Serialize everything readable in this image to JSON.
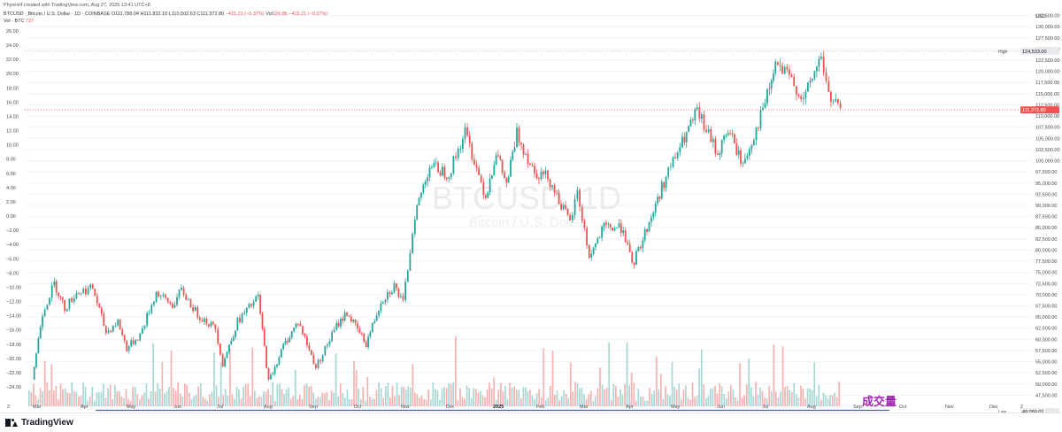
{
  "header": {
    "created_by": "Phyrexl4 created with TradingView.com, Aug 27, 2025 13:41 UTC+8",
    "symbol": "BTCUSD · Bitcoin / U.S. Dollar · 1D · COINBASE",
    "open": "O111,788.04",
    "high": "H111,832.10",
    "low": "L110,502.63",
    "close": "C111,372.80",
    "change": "−415.21 (−0.37%)",
    "vwap_label": "Vol",
    "vwap_value": "126.86",
    "vwap_change": "−415.21 (−0.37%)",
    "vol_label": "Vol · BTC",
    "vol_value": "727"
  },
  "watermark": {
    "ticker": "BTCUSD, 1D",
    "name": "Bitcoin / U.S. Dollar"
  },
  "annotation": {
    "text": "成交量",
    "color": "#9c27b0"
  },
  "footer": {
    "brand": "TradingView"
  },
  "colors": {
    "up": "#26a69a",
    "down": "#ef5350",
    "up_vol": "#a7d7d2",
    "down_vol": "#f6b2b0",
    "annotation_line": "#3d5afe"
  },
  "chart_data": {
    "type": "candlestick",
    "currency": "USD",
    "left_axis_ticks": [
      "26.00",
      "24.00",
      "22.00",
      "20.00",
      "18.00",
      "16.00",
      "14.00",
      "12.00",
      "10.00",
      "8.00",
      "6.00",
      "4.00",
      "2.00",
      "0.00",
      "−2.00",
      "−4.00",
      "−6.00",
      "−8.00",
      "−10.00",
      "−12.00",
      "−14.00",
      "−16.00",
      "−18.00",
      "−20.00",
      "−22.00",
      "−24.00"
    ],
    "right_axis_ticks": [
      "132,500.00",
      "130,000.00",
      "127,500.00",
      "125,000.00",
      "122,500.00",
      "120,000.00",
      "117,500.00",
      "115,000.00",
      "112,500.00",
      "110,000.00",
      "107,500.00",
      "105,000.00",
      "102,500.00",
      "100,000.00",
      "97,500.00",
      "95,000.00",
      "92,500.00",
      "90,000.00",
      "87,500.00",
      "85,000.00",
      "82,500.00",
      "80,000.00",
      "77,500.00",
      "75,000.00",
      "72,500.00",
      "70,000.00",
      "67,500.00",
      "65,000.00",
      "62,500.00",
      "60,000.00",
      "57,500.00",
      "55,000.00",
      "52,500.00",
      "50,000.00",
      "47,500.00"
    ],
    "right_axis_ticks_values": [
      132500,
      130000,
      127500,
      125000,
      122500,
      120000,
      117500,
      115000,
      112500,
      110000,
      107500,
      105000,
      102500,
      100000,
      97500,
      95000,
      92500,
      90000,
      87500,
      85000,
      82500,
      80000,
      77500,
      75000,
      72500,
      70000,
      67500,
      65000,
      62500,
      60000,
      57500,
      55000,
      52500,
      50000,
      47500
    ],
    "y_range": [
      45000,
      134000
    ],
    "x_labels": [
      "2",
      "Mar",
      "Apr",
      "May",
      "Jun",
      "Jul",
      "Aug",
      "Sep",
      "Oct",
      "Nov",
      "Dec",
      "2025",
      "Feb",
      "Mar",
      "Apr",
      "May",
      "Jun",
      "Jul",
      "Aug",
      "Sep",
      "Oct",
      "Nov",
      "Dec",
      "2"
    ],
    "price_points": [
      {
        "date": "2024-02-27",
        "close": 51000
      },
      {
        "date": "2024-03-05",
        "close": 66000
      },
      {
        "date": "2024-03-13",
        "close": 72500
      },
      {
        "date": "2024-03-20",
        "close": 67000
      },
      {
        "date": "2024-03-28",
        "close": 70500
      },
      {
        "date": "2024-04-08",
        "close": 71500
      },
      {
        "date": "2024-04-17",
        "close": 61500
      },
      {
        "date": "2024-04-25",
        "close": 64000
      },
      {
        "date": "2024-05-01",
        "close": 58000
      },
      {
        "date": "2024-05-10",
        "close": 61000
      },
      {
        "date": "2024-05-21",
        "close": 70500
      },
      {
        "date": "2024-06-01",
        "close": 67500
      },
      {
        "date": "2024-06-07",
        "close": 71000
      },
      {
        "date": "2024-06-18",
        "close": 65500
      },
      {
        "date": "2024-06-30",
        "close": 62500
      },
      {
        "date": "2024-07-05",
        "close": 54500
      },
      {
        "date": "2024-07-15",
        "close": 64000
      },
      {
        "date": "2024-07-29",
        "close": 69500
      },
      {
        "date": "2024-08-05",
        "close": 50500
      },
      {
        "date": "2024-08-15",
        "close": 58500
      },
      {
        "date": "2024-08-25",
        "close": 64000
      },
      {
        "date": "2024-09-06",
        "close": 53800
      },
      {
        "date": "2024-09-20",
        "close": 63000
      },
      {
        "date": "2024-09-27",
        "close": 66000
      },
      {
        "date": "2024-10-10",
        "close": 59000
      },
      {
        "date": "2024-10-20",
        "close": 68500
      },
      {
        "date": "2024-10-29",
        "close": 72000
      },
      {
        "date": "2024-11-04",
        "close": 68000
      },
      {
        "date": "2024-11-12",
        "close": 88000
      },
      {
        "date": "2024-11-22",
        "close": 99000
      },
      {
        "date": "2024-12-05",
        "close": 97000
      },
      {
        "date": "2024-12-16",
        "close": 106500
      },
      {
        "date": "2024-12-30",
        "close": 92000
      },
      {
        "date": "2025-01-06",
        "close": 102000
      },
      {
        "date": "2025-01-13",
        "close": 94500
      },
      {
        "date": "2025-01-20",
        "close": 106000
      },
      {
        "date": "2025-02-01",
        "close": 97500
      },
      {
        "date": "2025-02-10",
        "close": 96500
      },
      {
        "date": "2025-02-25",
        "close": 86000
      },
      {
        "date": "2025-03-02",
        "close": 93000
      },
      {
        "date": "2025-03-10",
        "close": 78500
      },
      {
        "date": "2025-03-20",
        "close": 85000
      },
      {
        "date": "2025-04-02",
        "close": 85000
      },
      {
        "date": "2025-04-08",
        "close": 76300
      },
      {
        "date": "2025-04-21",
        "close": 87500
      },
      {
        "date": "2025-05-01",
        "close": 96500
      },
      {
        "date": "2025-05-12",
        "close": 104000
      },
      {
        "date": "2025-05-22",
        "close": 111000
      },
      {
        "date": "2025-06-05",
        "close": 101500
      },
      {
        "date": "2025-06-12",
        "close": 107000
      },
      {
        "date": "2025-06-22",
        "close": 99000
      },
      {
        "date": "2025-07-01",
        "close": 107000
      },
      {
        "date": "2025-07-10",
        "close": 116000
      },
      {
        "date": "2025-07-14",
        "close": 121500
      },
      {
        "date": "2025-07-25",
        "close": 118000
      },
      {
        "date": "2025-08-02",
        "close": 113500
      },
      {
        "date": "2025-08-14",
        "close": 123500
      },
      {
        "date": "2025-08-19",
        "close": 114500
      },
      {
        "date": "2025-08-27",
        "close": 111373
      }
    ],
    "high": "124,533.00",
    "high_value": 124533,
    "last_price": "111,372.80",
    "last_price_value": 111372.8,
    "low": "49,050.01",
    "low_value": 49050.01,
    "volume_badge": "727",
    "low_label": "Low",
    "high_label": "High",
    "volume_label": "Volume",
    "series": [
      {
        "name": "BTCUSD",
        "type": "candlestick"
      },
      {
        "name": "Volume",
        "type": "bar"
      }
    ]
  }
}
